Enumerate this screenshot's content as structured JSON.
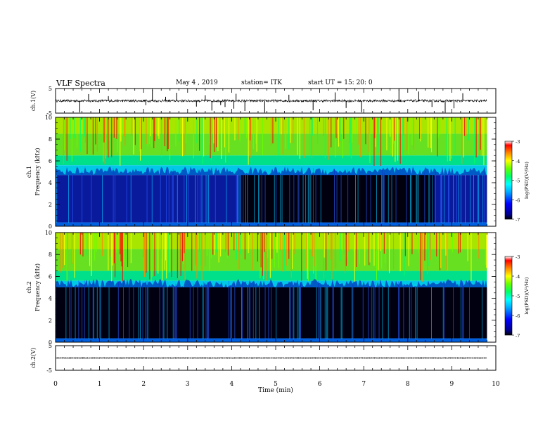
{
  "header": {
    "title": "VLF Spectra",
    "date": "May 4 , 2019",
    "station": "station= ITK",
    "start_time": "start UT = 15: 20: 0"
  },
  "colors": {
    "spectrum_scale": [
      "#000000",
      "#00008b",
      "#0000ff",
      "#00aaff",
      "#00ffff",
      "#00ff66",
      "#66ff00",
      "#ffff00",
      "#ff8800",
      "#ff0000",
      "#ffffff"
    ]
  },
  "chart_data": [
    {
      "type": "line",
      "name": "waveform-ch1",
      "ylabel": "ch.1(V)",
      "ylim": [
        -5,
        5
      ],
      "yticks": [
        "5",
        "-5"
      ],
      "xlim": [
        0,
        10
      ],
      "baseline": 0,
      "noise_band": [
        -0.5,
        0.5
      ],
      "spikes_min": [
        0.55,
        0.75,
        1.2,
        2.05,
        2.2,
        2.5,
        2.75,
        3.2,
        3.4,
        3.55,
        3.75,
        3.85,
        4.05,
        4.1,
        4.3,
        4.75,
        5.3,
        5.85,
        6.35,
        6.6,
        6.95,
        7.8,
        8.25,
        8.55,
        8.85,
        9.05,
        9.25
      ]
    },
    {
      "type": "heatmap",
      "name": "spectrogram-ch1",
      "ylabel": "ch.1\nFrequency (kHz)",
      "ylim": [
        0,
        10
      ],
      "yticks": [
        "0",
        "2",
        "4",
        "6",
        "8",
        "10"
      ],
      "xlim": [
        0,
        10
      ],
      "colorbar": {
        "label": "log(PSD)(V²/Hz)",
        "range": [
          -7,
          -3
        ],
        "ticks": [
          "-3",
          "-4",
          "-5",
          "-6",
          "-7"
        ]
      },
      "noise_floor_khz": 4.7
    },
    {
      "type": "heatmap",
      "name": "spectrogram-ch2",
      "ylabel": "ch.2\nFrequency (kHz)",
      "ylim": [
        0,
        10
      ],
      "yticks": [
        "0",
        "2",
        "4",
        "6",
        "8",
        "10"
      ],
      "xlim": [
        0,
        10
      ],
      "colorbar": {
        "label": "log(PSD)(V²/Hz)",
        "range": [
          -7,
          -3
        ],
        "ticks": [
          "-3",
          "-4",
          "-5",
          "-6",
          "-7"
        ]
      },
      "noise_floor_khz": 5.0
    },
    {
      "type": "line",
      "name": "waveform-ch2",
      "ylabel": "ch.2(V)",
      "ylim": [
        -5,
        5
      ],
      "yticks": [
        "5",
        "-5"
      ],
      "xlim": [
        0,
        10
      ],
      "baseline": 0
    }
  ],
  "xaxis": {
    "label": "Time (min)",
    "range": [
      0,
      9.8
    ],
    "ticks": [
      "0",
      "1",
      "2",
      "3",
      "4",
      "5",
      "6",
      "7",
      "8",
      "9",
      "10"
    ]
  }
}
